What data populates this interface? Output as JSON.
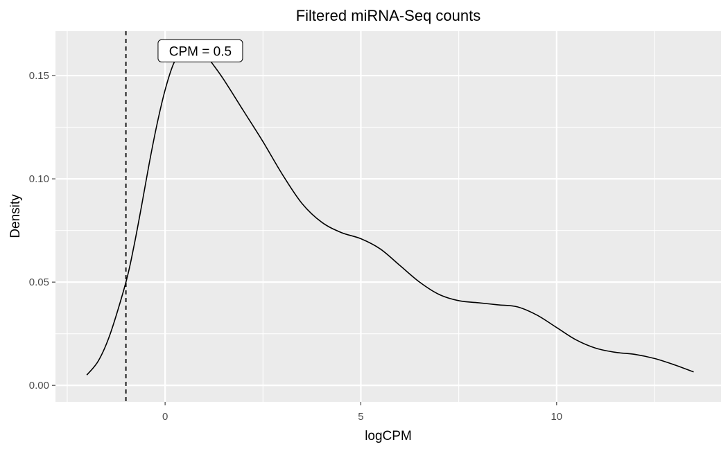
{
  "chart_data": {
    "type": "line",
    "title": "Filtered miRNA-Seq counts",
    "xlabel": "logCPM",
    "ylabel": "Density",
    "xlim": [
      -2.8,
      14.2
    ],
    "ylim": [
      -0.008,
      0.1715
    ],
    "x_ticks": [
      0,
      5,
      10
    ],
    "x_tick_labels": [
      "0",
      "5",
      "10"
    ],
    "y_ticks": [
      0.0,
      0.05,
      0.1,
      0.15
    ],
    "y_tick_labels": [
      "0.00",
      "0.05",
      "0.10",
      "0.15"
    ],
    "grid": true,
    "series": [
      {
        "x": [
          -2.0,
          -1.7,
          -1.4,
          -1.0,
          -0.8,
          -0.6,
          -0.4,
          -0.2,
          0.0,
          0.2,
          0.4,
          0.6,
          0.8,
          1.0,
          1.2,
          1.5,
          2.0,
          2.5,
          3.0,
          3.5,
          4.0,
          4.5,
          5.0,
          5.5,
          6.0,
          6.5,
          7.0,
          7.5,
          8.0,
          8.5,
          9.0,
          9.5,
          10.0,
          10.5,
          11.0,
          11.5,
          12.0,
          12.5,
          13.0,
          13.5
        ],
        "y": [
          0.005,
          0.012,
          0.025,
          0.05,
          0.067,
          0.087,
          0.108,
          0.127,
          0.143,
          0.155,
          0.162,
          0.165,
          0.164,
          0.161,
          0.156,
          0.148,
          0.133,
          0.118,
          0.102,
          0.088,
          0.079,
          0.074,
          0.071,
          0.066,
          0.058,
          0.05,
          0.044,
          0.041,
          0.04,
          0.039,
          0.038,
          0.034,
          0.028,
          0.022,
          0.018,
          0.016,
          0.015,
          0.013,
          0.01,
          0.0065
        ]
      }
    ],
    "reference_line": {
      "x": -1.0,
      "style": "dashed"
    },
    "annotation": {
      "text": "CPM = 0.5",
      "x": 0.9,
      "y": 0.162
    }
  }
}
